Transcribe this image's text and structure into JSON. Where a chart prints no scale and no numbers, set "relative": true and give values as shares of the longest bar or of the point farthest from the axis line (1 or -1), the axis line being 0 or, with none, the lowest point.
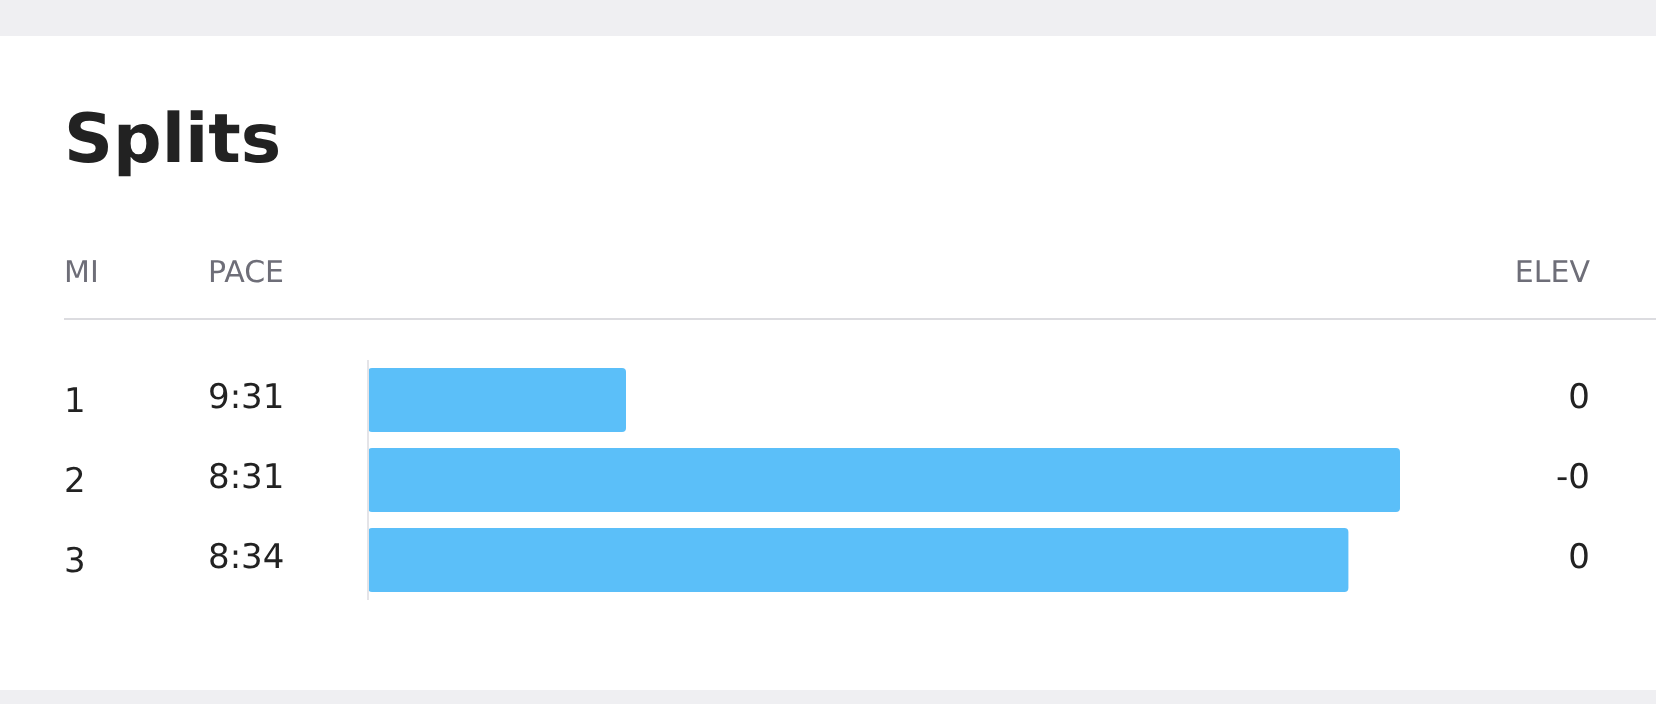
{
  "chart_data": {
    "type": "bar",
    "orientation": "horizontal",
    "relative": true,
    "title": "Splits",
    "categories": [
      "1",
      "2",
      "3"
    ],
    "values": [
      0.25,
      1,
      0.95
    ],
    "color": "#5bbff9",
    "annotations": [
      "MI",
      "PACE",
      "ELEV",
      "9:31",
      "8:31",
      "8:34",
      "0",
      "-0",
      "0"
    ]
  }
}
